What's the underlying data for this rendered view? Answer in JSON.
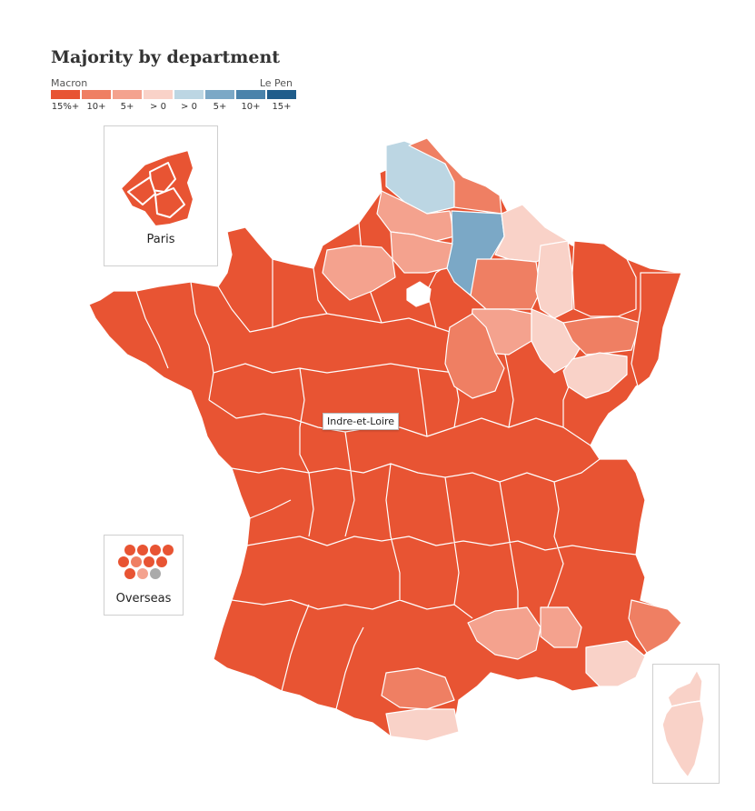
{
  "title": "Majority by department",
  "legend": {
    "left_label": "Macron",
    "right_label": "Le Pen",
    "items": [
      {
        "label": "15%+",
        "color": "#e85433"
      },
      {
        "label": "10+",
        "color": "#ef7f63"
      },
      {
        "label": "5+",
        "color": "#f4a28e"
      },
      {
        "label": "> 0",
        "color": "#f9d2c8"
      },
      {
        "label": "> 0",
        "color": "#bcd6e3"
      },
      {
        "label": "5+",
        "color": "#7ba8c6"
      },
      {
        "label": "10+",
        "color": "#4a83ab"
      },
      {
        "label": "15+",
        "color": "#1f5d8b"
      }
    ]
  },
  "insets": {
    "paris": {
      "label": "Paris"
    },
    "overseas": {
      "label": "Overseas"
    }
  },
  "tooltip": {
    "text": "Indre-et-Loire"
  },
  "colors": {
    "macron_15": "#e85433",
    "macron_10": "#ef7f63",
    "macron_5": "#f4a28e",
    "macron_0": "#f9d2c8",
    "lepen_0": "#bcd6e3",
    "lepen_5": "#7ba8c6",
    "neutral": "#aaaaaa",
    "border": "#ffffff"
  }
}
